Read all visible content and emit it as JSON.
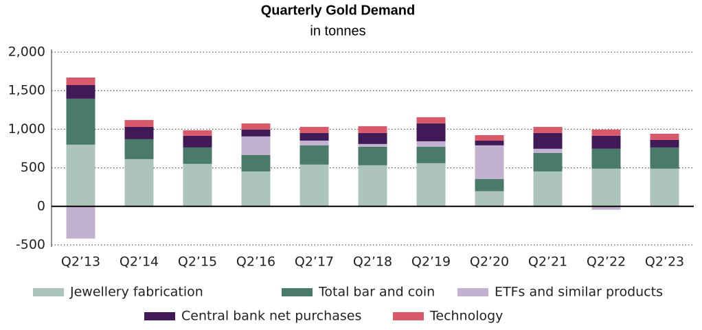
{
  "chart_data": {
    "type": "stacked-bar",
    "title": "Quarterly Gold Demand",
    "subtitle": "in tonnes",
    "categories": [
      "Q2’13",
      "Q2’14",
      "Q2’15",
      "Q2’16",
      "Q2’17",
      "Q2’18",
      "Q2’19",
      "Q2’20",
      "Q2’21",
      "Q2’22",
      "Q2’23"
    ],
    "series": [
      {
        "name": "Jewellery fabrication",
        "color": "#adc4bb",
        "values": [
          800,
          613,
          551,
          453,
          542,
          533,
          560,
          196,
          453,
          489,
          489
        ]
      },
      {
        "name": "Total bar and coin",
        "color": "#4a7b6a",
        "values": [
          596,
          258,
          213,
          214,
          249,
          240,
          213,
          160,
          240,
          258,
          275
        ]
      },
      {
        "name": "ETFs and similar products",
        "color": "#c2b2cf",
        "values": [
          -418,
          -2,
          -3,
          240,
          62,
          36,
          71,
          435,
          54,
          -44,
          -5
        ]
      },
      {
        "name": "Central bank net purchases",
        "color": "#3f1a57",
        "values": [
          177,
          160,
          152,
          89,
          98,
          142,
          232,
          62,
          204,
          169,
          98
        ]
      },
      {
        "name": "Technology",
        "color": "#d9596a",
        "values": [
          98,
          89,
          71,
          80,
          80,
          89,
          80,
          71,
          80,
          80,
          80
        ]
      }
    ],
    "ylim": [
      -500,
      2000
    ],
    "yticks": [
      -500,
      0,
      500,
      {
        "value": 1000,
        "label": "1,000"
      },
      {
        "value": 1500,
        "label": "1,500"
      },
      {
        "value": 2000,
        "label": "2,000"
      }
    ],
    "grid": true,
    "legend": "bottom"
  }
}
